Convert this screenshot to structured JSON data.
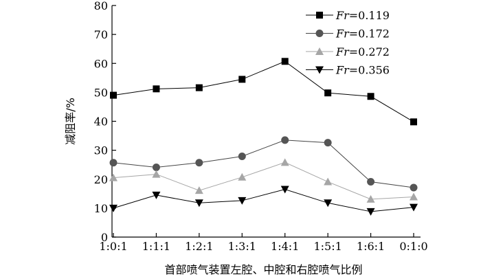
{
  "chart_data": {
    "type": "line",
    "categories": [
      "1:0:1",
      "1:1:1",
      "1:2:1",
      "1:3:1",
      "1:4:1",
      "1:5:1",
      "1:6:1",
      "0:1:0"
    ],
    "xlabel": "首部喷气装置左腔、中腔和右腔喷气比例",
    "ylabel": "减阻率/%",
    "ylim": [
      0,
      80
    ],
    "yticks": [
      0,
      10,
      20,
      30,
      40,
      50,
      60,
      70,
      80
    ],
    "grid": false,
    "legend_position": "top-right",
    "series": [
      {
        "name": "Fr=0.119",
        "label_italic": "Fr",
        "label_value": "=0.119",
        "marker": "square",
        "color": "#000000",
        "line_color": "#000000",
        "values": [
          49,
          51.2,
          51.6,
          54.5,
          60.7,
          49.8,
          48.6,
          39.8
        ]
      },
      {
        "name": "Fr=0.172",
        "label_italic": "Fr",
        "label_value": "=0.172",
        "marker": "circle",
        "color": "#555555",
        "line_color": "#444444",
        "values": [
          25.7,
          24.1,
          25.7,
          27.9,
          33.5,
          32.6,
          19.1,
          17.1
        ]
      },
      {
        "name": "Fr=0.272",
        "label_italic": "Fr",
        "label_value": "=0.272",
        "marker": "triangle-up",
        "color": "#a6a6a6",
        "line_color": "#a6a6a6",
        "values": [
          20.5,
          21.7,
          16.1,
          20.7,
          25.8,
          19.1,
          13.1,
          13.9
        ]
      },
      {
        "name": "Fr=0.356",
        "label_italic": "Fr",
        "label_value": "=0.356",
        "marker": "triangle-down",
        "color": "#000000",
        "line_color": "#000000",
        "values": [
          10.0,
          14.5,
          11.8,
          12.6,
          16.5,
          11.8,
          8.8,
          10.3
        ]
      }
    ]
  }
}
